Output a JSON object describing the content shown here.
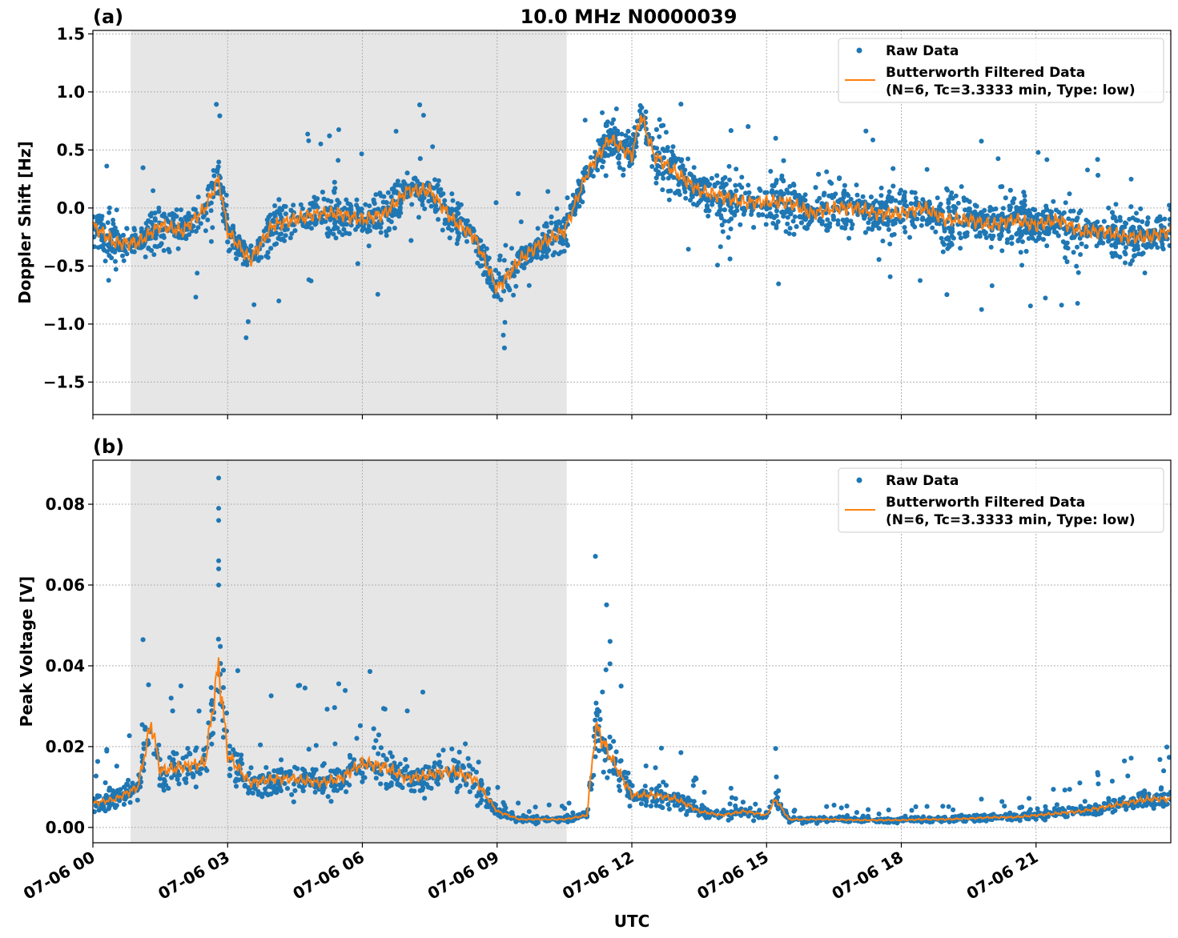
{
  "title": "10.0 MHz N0000039",
  "colors": {
    "raw": "#1f77b4",
    "filtered": "#ff7f0e",
    "shade": "#e6e6e6"
  },
  "chart_data": [
    {
      "type": "scatter",
      "panel_label": "(a)",
      "xlabel": "",
      "ylabel": "Doppler Shift [Hz]",
      "xlim": [
        0,
        24
      ],
      "ylim": [
        -1.78,
        1.53
      ],
      "x_ticks": [
        0,
        3,
        6,
        9,
        12,
        15,
        18,
        21
      ],
      "y_ticks": [
        -1.5,
        -1.0,
        -0.5,
        0.0,
        0.5,
        1.0,
        1.5
      ],
      "y_tick_labels": [
        "−1.5",
        "−1.0",
        "−0.5",
        "0.0",
        "0.5",
        "1.0",
        "1.5"
      ],
      "shaded_span": [
        0.84,
        10.55
      ],
      "grid": true,
      "legend": {
        "position": "top-right",
        "entries": [
          "Raw Data",
          "Butterworth Filtered Data",
          "(N=6, Tc=3.3333 min, Type: low)"
        ]
      },
      "series": [
        {
          "name": "Butterworth Filtered Data",
          "kind": "line",
          "x": [
            0,
            0.5,
            1,
            1.5,
            2,
            2.5,
            2.8,
            3,
            3.5,
            4,
            4.5,
            5,
            5.5,
            6,
            6.5,
            7,
            7.5,
            8,
            8.5,
            9,
            9.5,
            10,
            10.5,
            11,
            11.5,
            12,
            12.2,
            12.5,
            13,
            13.5,
            14,
            14.5,
            15,
            15.5,
            16,
            16.5,
            17,
            17.5,
            18,
            18.5,
            19,
            19.5,
            20,
            20.5,
            21,
            21.5,
            22,
            22.5,
            23,
            23.5,
            24
          ],
          "y": [
            -0.15,
            -0.3,
            -0.3,
            -0.15,
            -0.2,
            0.0,
            0.25,
            -0.2,
            -0.45,
            -0.15,
            -0.1,
            -0.05,
            -0.05,
            -0.1,
            -0.05,
            0.15,
            0.15,
            -0.1,
            -0.25,
            -0.7,
            -0.45,
            -0.3,
            -0.2,
            0.3,
            0.6,
            0.45,
            0.8,
            0.45,
            0.3,
            0.15,
            0.1,
            0.05,
            0.05,
            0.05,
            -0.05,
            0.0,
            0.0,
            -0.05,
            -0.05,
            0.0,
            -0.1,
            -0.1,
            -0.15,
            -0.1,
            -0.15,
            -0.1,
            -0.2,
            -0.2,
            -0.25,
            -0.25,
            -0.2
          ]
        },
        {
          "name": "Raw Data",
          "kind": "scatter",
          "note_spread": "about ±0.35 Hz around filtered"
        }
      ]
    },
    {
      "type": "scatter",
      "panel_label": "(b)",
      "xlabel": "UTC",
      "ylabel": "Peak Voltage [V]",
      "xlim": [
        0,
        24
      ],
      "ylim": [
        -0.0038,
        0.0909
      ],
      "x_ticks": [
        0,
        3,
        6,
        9,
        12,
        15,
        18,
        21
      ],
      "x_tick_labels": [
        "07-06 00",
        "07-06 03",
        "07-06 06",
        "07-06 09",
        "07-06 12",
        "07-06 15",
        "07-06 18",
        "07-06 21"
      ],
      "y_ticks": [
        0,
        0.02,
        0.04,
        0.06,
        0.08
      ],
      "y_tick_labels": [
        "0.00",
        "0.02",
        "0.04",
        "0.06",
        "0.08"
      ],
      "shaded_span": [
        0.84,
        10.55
      ],
      "grid": true,
      "legend": {
        "position": "top-right",
        "entries": [
          "Raw Data",
          "Butterworth Filtered Data",
          "(N=6, Tc=3.3333 min, Type: low)"
        ]
      },
      "series": [
        {
          "name": "Butterworth Filtered Data",
          "kind": "line",
          "x": [
            0,
            0.5,
            1,
            1.3,
            1.5,
            2,
            2.5,
            2.8,
            3,
            3.5,
            4,
            4.5,
            5,
            5.5,
            6,
            6.5,
            7,
            7.5,
            8,
            8.5,
            9,
            9.5,
            10,
            10.5,
            11,
            11.2,
            11.5,
            12,
            12.5,
            13,
            13.5,
            14,
            14.5,
            15,
            15.2,
            15.5,
            16,
            16.5,
            17,
            17.5,
            18,
            18.5,
            19,
            19.5,
            20,
            20.5,
            21,
            21.5,
            22,
            22.5,
            23,
            23.5,
            24
          ],
          "y": [
            0.006,
            0.007,
            0.01,
            0.026,
            0.014,
            0.015,
            0.016,
            0.04,
            0.018,
            0.011,
            0.012,
            0.012,
            0.011,
            0.012,
            0.016,
            0.015,
            0.012,
            0.013,
            0.014,
            0.012,
            0.004,
            0.002,
            0.002,
            0.002,
            0.003,
            0.025,
            0.018,
            0.008,
            0.008,
            0.007,
            0.004,
            0.003,
            0.004,
            0.003,
            0.007,
            0.002,
            0.002,
            0.002,
            0.0018,
            0.0018,
            0.0018,
            0.002,
            0.002,
            0.0022,
            0.0025,
            0.0025,
            0.003,
            0.0035,
            0.004,
            0.005,
            0.006,
            0.007,
            0.007
          ]
        },
        {
          "name": "Raw Data",
          "kind": "scatter",
          "peak_value": 0.0865
        }
      ]
    }
  ]
}
